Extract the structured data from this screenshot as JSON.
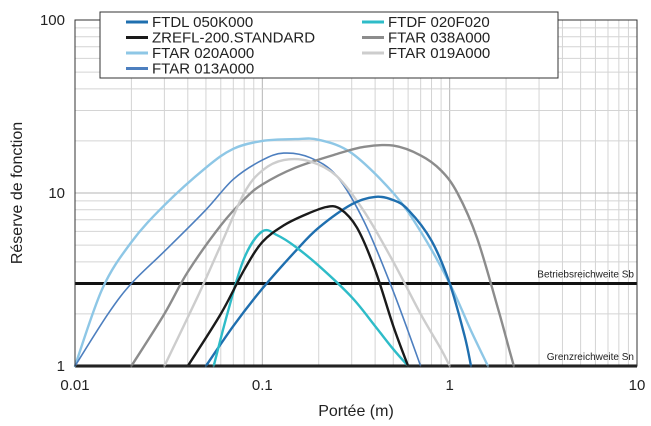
{
  "chart_data": {
    "type": "line",
    "xlabel": "Portée (m)",
    "ylabel": "Réserve de fonction",
    "xscale": "log",
    "yscale": "log",
    "xlim": [
      0.01,
      10
    ],
    "ylim": [
      1,
      100
    ],
    "x_ticks": [
      {
        "value": 0.01,
        "label": "0.01"
      },
      {
        "value": 0.1,
        "label": "0.1"
      },
      {
        "value": 1,
        "label": "1"
      },
      {
        "value": 10,
        "label": "10"
      }
    ],
    "y_ticks": [
      {
        "value": 1,
        "label": "1"
      },
      {
        "value": 10,
        "label": "10"
      },
      {
        "value": 100,
        "label": "100"
      }
    ],
    "grid": true,
    "legend": {
      "placement": "top",
      "columns": 2
    },
    "reference_lines": [
      {
        "label": "Betriebsreichweite Sb",
        "y": 3,
        "color": "#111111"
      },
      {
        "label": "Grenzreichweite Sn",
        "y": 1,
        "color": "#111111"
      }
    ],
    "series": [
      {
        "name": "FTDL 050K000",
        "color": "#1f6faf",
        "width": 2.4,
        "x": [
          0.05,
          0.07,
          0.1,
          0.15,
          0.2,
          0.3,
          0.4,
          0.5,
          0.6,
          0.8,
          1.0,
          1.2,
          1.3
        ],
        "y": [
          1,
          1.7,
          2.8,
          4.6,
          6.3,
          8.6,
          9.5,
          9.1,
          8.0,
          5.3,
          3.0,
          1.5,
          1
        ]
      },
      {
        "name": "FTDF 020F020",
        "color": "#2ebcc8",
        "width": 2.4,
        "x": [
          0.055,
          0.065,
          0.08,
          0.1,
          0.12,
          0.15,
          0.2,
          0.3,
          0.4,
          0.5,
          0.6
        ],
        "y": [
          1,
          2.0,
          4.2,
          6.0,
          5.7,
          4.9,
          3.8,
          2.5,
          1.7,
          1.25,
          1
        ]
      },
      {
        "name": "ZREFL-200.STANDARD",
        "color": "#1a1a1a",
        "width": 2.4,
        "x": [
          0.04,
          0.06,
          0.08,
          0.1,
          0.13,
          0.17,
          0.22,
          0.26,
          0.32,
          0.4,
          0.5,
          0.6
        ],
        "y": [
          1,
          2.0,
          3.6,
          5.2,
          6.5,
          7.5,
          8.3,
          8.1,
          6.3,
          3.6,
          1.7,
          1
        ]
      },
      {
        "name": "FTAR 038A000",
        "color": "#8c8c8c",
        "width": 2.4,
        "x": [
          0.02,
          0.03,
          0.04,
          0.06,
          0.08,
          0.1,
          0.15,
          0.25,
          0.35,
          0.5,
          0.7,
          0.9,
          1.1,
          1.4,
          1.8,
          2.1,
          2.2
        ],
        "y": [
          1,
          2.0,
          3.5,
          6.5,
          9.2,
          11.2,
          14,
          16.8,
          18.5,
          18.8,
          16.5,
          13.5,
          10,
          5.5,
          2.2,
          1.2,
          1
        ]
      },
      {
        "name": "FTAR 020A000",
        "color": "#8ec7e6",
        "width": 2.4,
        "x": [
          0.01,
          0.014,
          0.02,
          0.03,
          0.05,
          0.07,
          0.1,
          0.15,
          0.2,
          0.3,
          0.5,
          0.7,
          1.0,
          1.3,
          1.6
        ],
        "y": [
          1,
          2.8,
          5.2,
          8.5,
          14,
          18,
          20,
          20.5,
          20.3,
          17,
          10,
          6,
          3,
          1.6,
          1
        ]
      },
      {
        "name": "FTAR 019A000",
        "color": "#cdcdcd",
        "width": 2.4,
        "x": [
          0.03,
          0.045,
          0.06,
          0.08,
          0.1,
          0.13,
          0.18,
          0.25,
          0.35,
          0.5,
          0.7,
          0.9,
          1.0
        ],
        "y": [
          1,
          2.5,
          5.0,
          10,
          13.5,
          15.5,
          15.2,
          12.5,
          7.8,
          4,
          2,
          1.25,
          1
        ]
      },
      {
        "name": "FTAR 013A000",
        "color": "#4d7fbf",
        "width": 1.6,
        "x": [
          0.01,
          0.015,
          0.02,
          0.03,
          0.05,
          0.07,
          0.1,
          0.13,
          0.18,
          0.25,
          0.35,
          0.5,
          0.7
        ],
        "y": [
          1,
          2.0,
          3.0,
          4.6,
          8.0,
          12,
          15.5,
          17,
          16,
          12.5,
          6.8,
          2.7,
          1
        ]
      }
    ]
  }
}
